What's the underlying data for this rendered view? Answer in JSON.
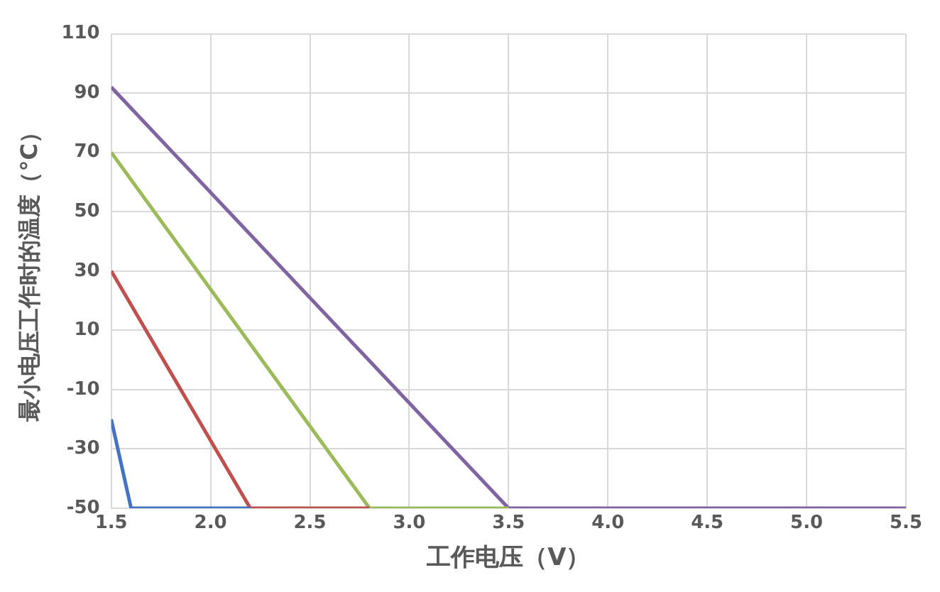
{
  "chart_data": {
    "type": "line",
    "xlabel": "工作电压（V）",
    "ylabel": "最小电压工作时的温度（°C）",
    "series": [
      {
        "color": "#4472c4",
        "x": [
          1.5,
          1.6,
          2.2
        ],
        "values": [
          -20,
          -50,
          -50
        ]
      },
      {
        "color": "#c0504d",
        "x": [
          1.5,
          2.2,
          2.8
        ],
        "values": [
          30,
          -50,
          -50
        ]
      },
      {
        "color": "#9bbb59",
        "x": [
          1.5,
          2.8,
          3.5
        ],
        "values": [
          70,
          -50,
          -50
        ]
      },
      {
        "color": "#8064a2",
        "x": [
          1.5,
          3.5,
          5.5
        ],
        "values": [
          92,
          -50,
          -50
        ]
      }
    ],
    "xlim": [
      1.5,
      5.5
    ],
    "xticks": [
      {
        "value": 1.5,
        "label": "1.5"
      },
      {
        "value": 2,
        "label": "2.0"
      },
      {
        "value": 2.5,
        "label": "2.5"
      },
      {
        "value": 3,
        "label": "3.0"
      },
      {
        "value": 3.5,
        "label": "3.5"
      },
      {
        "value": 4,
        "label": "4.0"
      },
      {
        "value": 4.5,
        "label": "4.5"
      },
      {
        "value": 5,
        "label": "5.0"
      },
      {
        "value": 5.5,
        "label": "5.5"
      }
    ],
    "ylim": [
      -50,
      110
    ],
    "yticks": [
      -50,
      -30,
      -10,
      10,
      30,
      50,
      70,
      90,
      110
    ],
    "grid": true,
    "legend": false,
    "marker": "none",
    "line_style": "solid"
  }
}
